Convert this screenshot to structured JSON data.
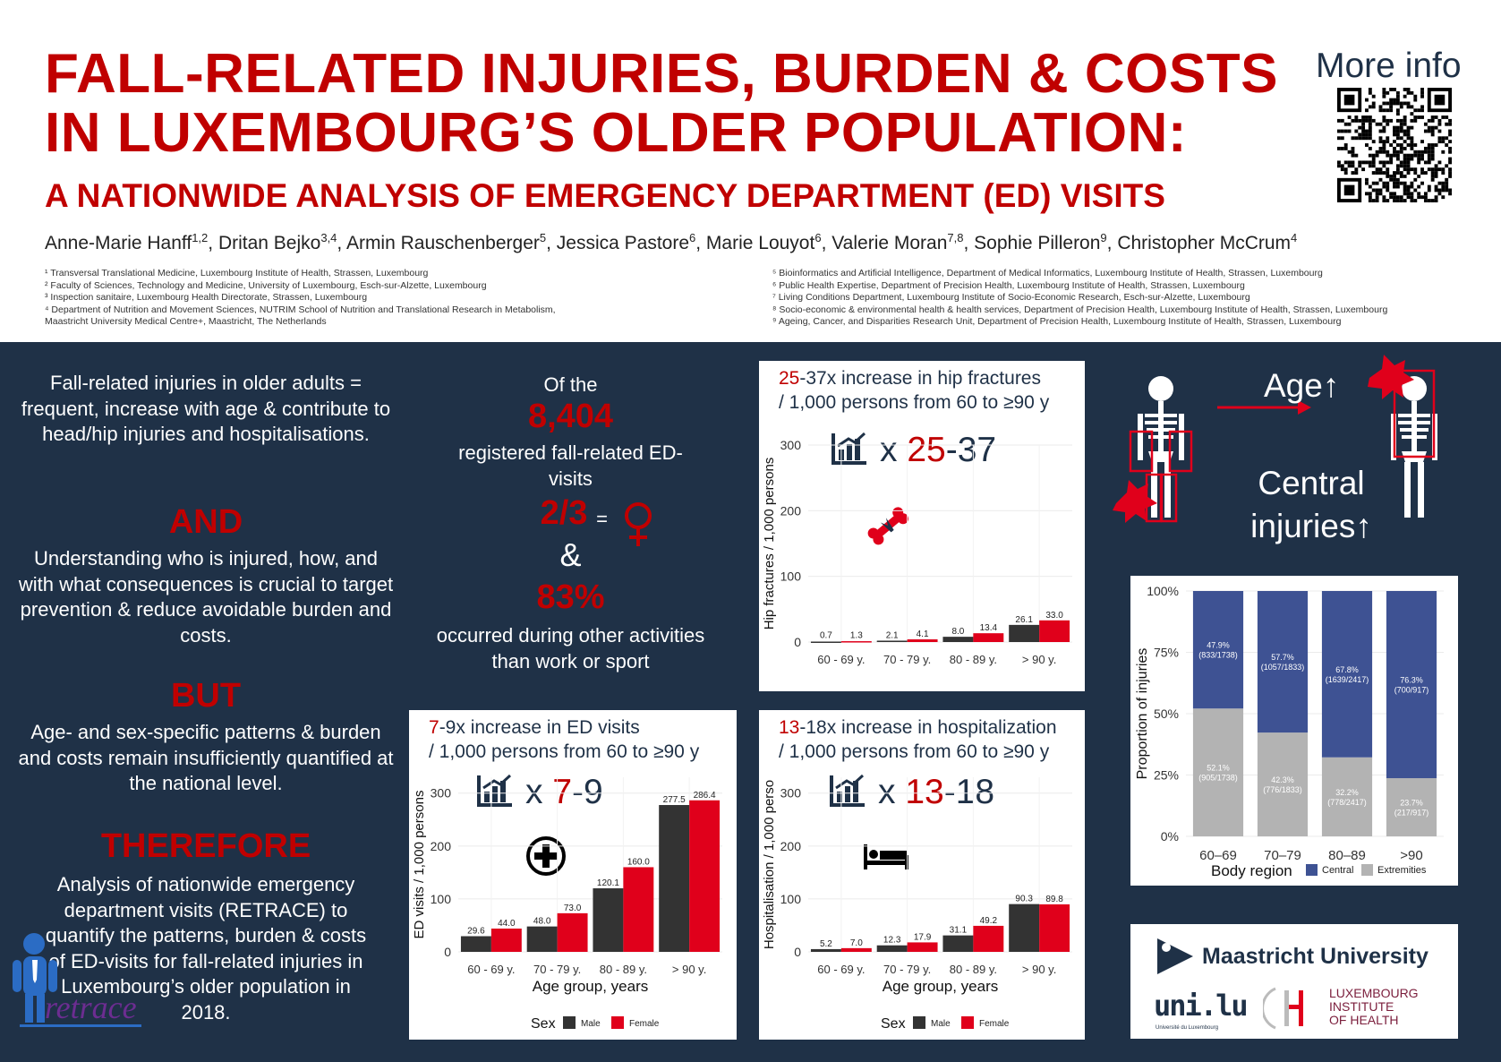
{
  "header": {
    "title_line1": "FALL-RELATED INJURIES, BURDEN & COSTS",
    "title_line2": "IN LUXEMBOURG’S OLDER POPULATION:",
    "subtitle": "A NATIONWIDE ANALYSIS OF EMERGENCY DEPARTMENT (ED) VISITS",
    "more_info": "More info",
    "authors": [
      {
        "name": "Anne-Marie Hanff",
        "sup": "1,2",
        "sep": ", "
      },
      {
        "name": "Dritan Bejko",
        "sup": "3,4",
        "sep": ", "
      },
      {
        "name": "Armin Rauschenberger",
        "sup": "5",
        "sep": ", "
      },
      {
        "name": "Jessica Pastore",
        "sup": "6",
        "sep": ", "
      },
      {
        "name": "Marie Louyot",
        "sup": "6",
        "sep": ", "
      },
      {
        "name": "Valerie Moran",
        "sup": "7,8",
        "sep": ", "
      },
      {
        "name": "Sophie Pilleron",
        "sup": "9",
        "sep": ", "
      },
      {
        "name": "Christopher McCrum",
        "sup": "4",
        "sep": ""
      }
    ],
    "affiliations_left": [
      "¹ Transversal Translational Medicine, Luxembourg Institute of Health, Strassen, Luxembourg",
      "² Faculty of Sciences, Technology and Medicine, University of Luxembourg, Esch-sur-Alzette, Luxembourg",
      "³ Inspection sanitaire, Luxembourg Health Directorate, Strassen, Luxembourg",
      "⁴ Department of Nutrition and Movement Sciences, NUTRIM School of Nutrition and Translational Research in Metabolism,",
      "Maastricht University Medical Centre+, Maastricht, The Netherlands"
    ],
    "affiliations_right": [
      "⁵ Bioinformatics and Artificial Intelligence, Department of Medical Informatics, Luxembourg Institute of Health, Strassen, Luxembourg",
      "⁶ Public Health Expertise, Department of Precision Health, Luxembourg Institute of Health, Strassen, Luxembourg",
      "⁷ Living Conditions Department, Luxembourg Institute of Socio-Economic Research, Esch-sur-Alzette, Luxembourg",
      "⁸ Socio-economic & environmental health & health services, Department of Precision Health, Luxembourg Institute of Health, Strassen, Luxembourg",
      "⁹ Ageing, Cancer, and Disparities Research Unit, Department of Precision Health, Luxembourg Institute of Health, Strassen, Luxembourg"
    ]
  },
  "left_column": {
    "intro": "Fall-related injuries in older adults = frequent, increase with age & contribute to head/hip injuries and hospitalisations.",
    "and_heading": "AND",
    "and_text": "Understanding who is injured, how, and with what consequences is crucial to target prevention & reduce avoidable burden and costs.",
    "but_heading": "BUT",
    "but_text": "Age- and sex-specific patterns & burden and costs remain insufficiently quantified at the national level.",
    "therefore_heading": "THEREFORE",
    "therefore_text": "Analysis of nationwide emergency department visits (RETRACE) to quantify the patterns, burden & costs of ED-visits for fall-related injuries in Luxembourg’s older population in 2018.",
    "logo_text": "retrace"
  },
  "middle_column": {
    "of_the": "Of the",
    "count": "8,404",
    "registered": "registered fall-related ED-visits",
    "fraction": "2/3",
    "equals": "=",
    "ampersand": "&",
    "percent": "83%",
    "occurred": "occurred during other activities than work or sport"
  },
  "ed_chart": {
    "title_red": "7",
    "title_rest": "-9x increase in ED visits",
    "title_line2": "/ 1,000 persons from 60 to ≥90 y",
    "mult_prefix": "x ",
    "mult_red": "7",
    "mult_rest": "-9",
    "legend_title": "Sex",
    "legend_male": "Male",
    "legend_female": "Female"
  },
  "hip_chart": {
    "title_red": "25",
    "title_rest": "-37x increase in hip fractures",
    "title_line2": "/ 1,000 persons from 60 to ≥90 y",
    "mult_prefix": "x ",
    "mult_red": "25",
    "mult_rest": "-37"
  },
  "hosp_chart": {
    "title_red": "13",
    "title_rest": "-18x increase in hospitalization",
    "title_line2": "/ 1,000 persons from 60 to ≥90 y",
    "mult_prefix": "x ",
    "mult_red": "13",
    "mult_rest": "-18",
    "legend_title": "Sex",
    "legend_male": "Male",
    "legend_female": "Female"
  },
  "skeleton_panel": {
    "age_label": "Age",
    "central_label_1": "Central",
    "central_label_2": "injuries"
  },
  "logos": {
    "maastricht": "Maastricht University",
    "unilu": "uni.lu",
    "unilu_sub": "Université du Luxembourg",
    "lih_1": "LUXEMBOURG",
    "lih_2": "INSTITUTE",
    "lih_3": "OF HEALTH"
  },
  "colors": {
    "red": "#c00000",
    "navy": "#1f3147",
    "male": "#333333",
    "female": "#e0001b",
    "central": "#3e5293",
    "extremities": "#b3b3b3"
  },
  "chart_data": [
    {
      "type": "bar",
      "xlabel": "Age group, years",
      "ylabel": "ED visits / 1,000 persons",
      "categories": [
        "60 - 69 y.",
        "70 - 79 y.",
        "80 - 89 y.",
        "> 90 y."
      ],
      "ylim": [
        0,
        330
      ],
      "yticks": [
        0,
        100,
        200,
        300
      ],
      "series": [
        {
          "name": "Male",
          "values": [
            29.6,
            48.0,
            120.1,
            277.5
          ],
          "labels": [
            "29.6",
            "48.0",
            "120.1",
            "277.5"
          ]
        },
        {
          "name": "Female",
          "values": [
            44.0,
            73.0,
            160.0,
            286.4
          ],
          "labels": [
            "44.0",
            "73.0",
            "160.0",
            "286.4"
          ]
        }
      ],
      "legend": "bottom"
    },
    {
      "type": "bar",
      "xlabel": "",
      "ylabel": "Hip fractures / 1,000 persons",
      "categories": [
        "60 - 69 y.",
        "70 - 79 y.",
        "80 - 89 y.",
        "> 90 y."
      ],
      "ylim": [
        0,
        300
      ],
      "yticks": [
        0,
        100,
        200,
        300
      ],
      "series": [
        {
          "name": "Male",
          "values": [
            0.7,
            2.1,
            8.0,
            26.1
          ],
          "labels": [
            "0.7",
            "2.1",
            "8.0",
            "26.1"
          ]
        },
        {
          "name": "Female",
          "values": [
            1.3,
            4.1,
            13.4,
            33.0
          ],
          "labels": [
            "1.3",
            "4.1",
            "13.4",
            "33.0"
          ]
        }
      ]
    },
    {
      "type": "bar",
      "xlabel": "Age group, years",
      "ylabel": "Hospitalisation / 1,000 perso",
      "categories": [
        "60 - 69 y.",
        "70 - 79 y.",
        "80 - 89 y.",
        "> 90 y."
      ],
      "ylim": [
        0,
        330
      ],
      "yticks": [
        0,
        100,
        200,
        300
      ],
      "series": [
        {
          "name": "Male",
          "values": [
            5.2,
            12.3,
            31.1,
            90.3
          ],
          "labels": [
            "5.2",
            "12.3",
            "31.1",
            "90.3"
          ]
        },
        {
          "name": "Female",
          "values": [
            7.0,
            17.9,
            49.2,
            89.8
          ],
          "labels": [
            "7.0",
            "17.9",
            "49.2",
            "89.8"
          ]
        }
      ],
      "legend": "bottom"
    },
    {
      "type": "bar",
      "stacked": true,
      "xlabel": "",
      "ylabel": "Proportion of injuries",
      "categories": [
        "60–69",
        "70–79",
        "80–89",
        ">90"
      ],
      "yticks": [
        "0%",
        "25%",
        "50%",
        "75%",
        "100%"
      ],
      "series": [
        {
          "name": "Central",
          "values": [
            47.9,
            57.7,
            67.8,
            76.3
          ],
          "labels": [
            "47.9%",
            "57.7%",
            "67.8%",
            "76.3%"
          ],
          "counts": [
            "(833/1738)",
            "(1057/1833)",
            "(1639/2417)",
            "(700/917)"
          ]
        },
        {
          "name": "Extremities",
          "values": [
            52.1,
            42.3,
            32.2,
            23.7
          ],
          "labels": [
            "52.1%",
            "42.3%",
            "32.2%",
            "23.7%"
          ],
          "counts": [
            "(905/1738)",
            "(776/1833)",
            "(778/2417)",
            "(217/917)"
          ]
        }
      ],
      "legend_title": "Body region",
      "legend": "bottom"
    }
  ]
}
